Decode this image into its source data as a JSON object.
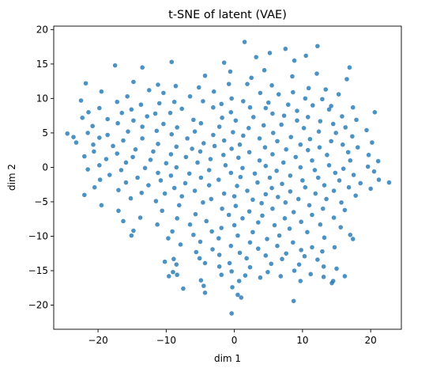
{
  "chart_data": {
    "type": "scatter",
    "title": "t-SNE of latent (VAE)",
    "xlabel": "dim 1",
    "ylabel": "dim 2",
    "xlim": [
      -26.5,
      24.5
    ],
    "ylim": [
      -23.5,
      20.5
    ],
    "xticks": [
      -20,
      -10,
      0,
      10,
      20
    ],
    "yticks": [
      -20,
      -15,
      -10,
      -5,
      0,
      5,
      10,
      15,
      20
    ],
    "grid": false,
    "legend": "none",
    "marker_color": "#1f77b4",
    "marker_opacity": 0.8,
    "points": [
      [
        1.5,
        18.2
      ],
      [
        12.2,
        17.6
      ],
      [
        7.5,
        17.2
      ],
      [
        5.2,
        16.6
      ],
      [
        10.5,
        16.2
      ],
      [
        3.2,
        16.0
      ],
      [
        8.8,
        15.5
      ],
      [
        -9.2,
        15.3
      ],
      [
        -1.5,
        15.2
      ],
      [
        -17.5,
        14.8
      ],
      [
        -13.5,
        14.5
      ],
      [
        16.9,
        14.5
      ],
      [
        4.4,
        14.1
      ],
      [
        -0.6,
        13.9
      ],
      [
        12.1,
        13.6
      ],
      [
        8.5,
        13.2
      ],
      [
        -4.3,
        13.3
      ],
      [
        2.5,
        13.0
      ],
      [
        16.5,
        12.8
      ],
      [
        -21.8,
        12.2
      ],
      [
        -14.8,
        12.4
      ],
      [
        -11.2,
        12.0
      ],
      [
        -0.8,
        12.1
      ],
      [
        1.9,
        12.1
      ],
      [
        5.5,
        11.9
      ],
      [
        -8.6,
        11.8
      ],
      [
        -5.2,
        11.6
      ],
      [
        10.9,
        11.5
      ],
      [
        13.4,
        11.3
      ],
      [
        -19.5,
        11.0
      ],
      [
        -12.5,
        11.2
      ],
      [
        -10.4,
        10.8
      ],
      [
        -3.0,
        11.0
      ],
      [
        3.8,
        10.8
      ],
      [
        6.5,
        10.6
      ],
      [
        8.6,
        10.9
      ],
      [
        15.3,
        10.6
      ],
      [
        -15.7,
        10.3
      ],
      [
        -6.5,
        10.3
      ],
      [
        -0.4,
        10.0
      ],
      [
        10.4,
        10.0
      ],
      [
        12.9,
        9.9
      ],
      [
        -22.5,
        9.7
      ],
      [
        -17.2,
        9.5
      ],
      [
        -11.0,
        9.3
      ],
      [
        -8.8,
        9.5
      ],
      [
        -4.6,
        9.6
      ],
      [
        1.3,
        9.6
      ],
      [
        5.0,
        9.4
      ],
      [
        -13.7,
        9.1
      ],
      [
        -1.9,
        9.2
      ],
      [
        7.9,
        9.1
      ],
      [
        11.5,
        9.0
      ],
      [
        14.2,
        8.9
      ],
      [
        17.4,
        8.7
      ],
      [
        -19.8,
        8.6
      ],
      [
        -15.1,
        8.4
      ],
      [
        -7.7,
        8.5
      ],
      [
        -3.1,
        8.7
      ],
      [
        2.3,
        8.7
      ],
      [
        4.6,
        8.6
      ],
      [
        9.2,
        8.2
      ],
      [
        -21.4,
        8.0
      ],
      [
        -16.5,
        7.9
      ],
      [
        -11.6,
        7.8
      ],
      [
        -9.4,
        7.9
      ],
      [
        -0.5,
        8.0
      ],
      [
        5.6,
        7.8
      ],
      [
        13.9,
        8.4
      ],
      [
        20.6,
        8.0
      ],
      [
        -12.8,
        7.4
      ],
      [
        -1.8,
        7.2
      ],
      [
        2.8,
        7.3
      ],
      [
        7.3,
        7.5
      ],
      [
        10.8,
        7.3
      ],
      [
        15.8,
        7.4
      ],
      [
        -22.3,
        7.2
      ],
      [
        -18.6,
        7.0
      ],
      [
        -14.8,
        6.8
      ],
      [
        -6.0,
        6.9
      ],
      [
        0.2,
        6.8
      ],
      [
        9.2,
        6.8
      ],
      [
        12.6,
        6.7
      ],
      [
        17.9,
        6.9
      ],
      [
        -17.1,
        6.4
      ],
      [
        -10.4,
        6.3
      ],
      [
        -4.9,
        6.4
      ],
      [
        4.3,
        6.1
      ],
      [
        6.9,
        6.2
      ],
      [
        14.5,
        6.3
      ],
      [
        -20.8,
        6.0
      ],
      [
        -13.5,
        5.9
      ],
      [
        -8.4,
        5.8
      ],
      [
        -2.2,
        5.9
      ],
      [
        2.1,
        5.7
      ],
      [
        10.2,
        5.7
      ],
      [
        16.3,
        5.8
      ],
      [
        19.4,
        5.4
      ],
      [
        -21.5,
        5.0
      ],
      [
        -15.6,
        5.2
      ],
      [
        -11.4,
        5.3
      ],
      [
        -5.8,
        5.2
      ],
      [
        -0.2,
        5.1
      ],
      [
        5.7,
        5.0
      ],
      [
        12.4,
        5.2
      ],
      [
        14.9,
        5.0
      ],
      [
        -24.5,
        4.9
      ],
      [
        -18.6,
        4.7
      ],
      [
        -9.2,
        4.8
      ],
      [
        -3.1,
        4.7
      ],
      [
        1.3,
        4.6
      ],
      [
        8.3,
        4.4
      ],
      [
        17.3,
        4.5
      ],
      [
        -23.6,
        4.4
      ],
      [
        -19.8,
        4.3
      ],
      [
        -13.5,
        4.2
      ],
      [
        -6.9,
        4.2
      ],
      [
        3.7,
        4.2
      ],
      [
        11.1,
        4.1
      ],
      [
        -16.3,
        3.9
      ],
      [
        -1.5,
        3.9
      ],
      [
        6.3,
        3.8
      ],
      [
        14.2,
        3.8
      ],
      [
        20.2,
        3.6
      ],
      [
        -23.2,
        3.6
      ],
      [
        -20.7,
        3.3
      ],
      [
        -11.2,
        3.4
      ],
      [
        -4.5,
        3.5
      ],
      [
        0.8,
        3.3
      ],
      [
        9.7,
        3.3
      ],
      [
        15.9,
        3.3
      ],
      [
        -17.8,
        3.1
      ],
      [
        -8.5,
        3.0
      ],
      [
        -2.9,
        3.1
      ],
      [
        4.5,
        2.9
      ],
      [
        12.5,
        2.9
      ],
      [
        18.1,
        2.9
      ],
      [
        -14.5,
        2.6
      ],
      [
        -6.2,
        2.7
      ],
      [
        -0.4,
        2.7
      ],
      [
        7.6,
        2.6
      ],
      [
        10.8,
        2.5
      ],
      [
        -20.6,
        2.3
      ],
      [
        -11.9,
        2.3
      ],
      [
        -5.0,
        2.3
      ],
      [
        2.2,
        2.2
      ],
      [
        16.7,
        2.2
      ],
      [
        -17.2,
        2.0
      ],
      [
        -9.3,
        1.9
      ],
      [
        -1.6,
        1.8
      ],
      [
        5.6,
        1.9
      ],
      [
        13.6,
        1.8
      ],
      [
        19.7,
        1.8
      ],
      [
        -22.0,
        1.6
      ],
      [
        -14.9,
        1.5
      ],
      [
        -7.1,
        1.5
      ],
      [
        0.6,
        1.4
      ],
      [
        9.0,
        1.5
      ],
      [
        -18.8,
        1.2
      ],
      [
        -12.3,
        1.1
      ],
      [
        -3.5,
        1.2
      ],
      [
        3.7,
        1.0
      ],
      [
        11.4,
        1.0
      ],
      [
        17.0,
        1.0
      ],
      [
        -15.9,
        0.7
      ],
      [
        -10.0,
        0.6
      ],
      [
        -5.4,
        0.7
      ],
      [
        7.2,
        0.7
      ],
      [
        21.1,
        0.9
      ],
      [
        -19.8,
        0.3
      ],
      [
        -1.3,
        0.3
      ],
      [
        4.6,
        0.2
      ],
      [
        13.9,
        0.3
      ],
      [
        -13.1,
        -0.1
      ],
      [
        -8.5,
        0.0
      ],
      [
        1.2,
        -0.1
      ],
      [
        9.7,
        0.0
      ],
      [
        16.0,
        -0.2
      ],
      [
        19.6,
        0.1
      ],
      [
        -21.5,
        -0.3
      ],
      [
        -16.6,
        -0.4
      ],
      [
        -3.7,
        -0.4
      ],
      [
        6.2,
        -0.5
      ],
      [
        11.8,
        -0.4
      ],
      [
        -11.2,
        -0.8
      ],
      [
        -6.6,
        -0.9
      ],
      [
        -0.5,
        -0.8
      ],
      [
        3.0,
        -0.9
      ],
      [
        14.8,
        -0.8
      ],
      [
        20.5,
        -0.6
      ],
      [
        -18.3,
        -1.1
      ],
      [
        -9.3,
        -1.2
      ],
      [
        8.2,
        -1.2
      ],
      [
        17.5,
        -1.1
      ],
      [
        -14.2,
        -1.5
      ],
      [
        -4.9,
        -1.5
      ],
      [
        0.9,
        -1.4
      ],
      [
        5.2,
        -1.5
      ],
      [
        12.3,
        -1.5
      ],
      [
        -19.7,
        -1.8
      ],
      [
        -10.8,
        -1.9
      ],
      [
        -2.3,
        -1.8
      ],
      [
        10.0,
        -1.9
      ],
      [
        15.4,
        -1.9
      ],
      [
        21.2,
        -1.8
      ],
      [
        -15.9,
        -2.2
      ],
      [
        -7.2,
        -2.3
      ],
      [
        3.4,
        -2.2
      ],
      [
        7.0,
        -2.4
      ],
      [
        18.5,
        -2.3
      ],
      [
        22.7,
        -2.2
      ],
      [
        -12.6,
        -2.6
      ],
      [
        -3.7,
        -2.6
      ],
      [
        0.4,
        -2.7
      ],
      [
        13.2,
        -2.6
      ],
      [
        -20.5,
        -2.9
      ],
      [
        -8.8,
        -3.0
      ],
      [
        5.5,
        -3.0
      ],
      [
        10.4,
        -2.9
      ],
      [
        16.8,
        -2.9
      ],
      [
        20.0,
        -3.1
      ],
      [
        -17.0,
        -3.3
      ],
      [
        -5.8,
        -3.4
      ],
      [
        1.9,
        -3.4
      ],
      [
        8.2,
        -3.5
      ],
      [
        14.6,
        -3.4
      ],
      [
        -13.6,
        -3.7
      ],
      [
        -10.2,
        -3.8
      ],
      [
        -1.5,
        -3.8
      ],
      [
        4.6,
        -3.9
      ],
      [
        11.9,
        -3.8
      ],
      [
        -22.0,
        -4.0
      ],
      [
        -7.7,
        -4.2
      ],
      [
        0.0,
        -4.2
      ],
      [
        6.4,
        -4.3
      ],
      [
        17.8,
        -4.1
      ],
      [
        -15.2,
        -4.5
      ],
      [
        -3.4,
        -4.6
      ],
      [
        2.7,
        -4.7
      ],
      [
        9.4,
        -4.6
      ],
      [
        13.5,
        -4.6
      ],
      [
        -11.5,
        -4.9
      ],
      [
        -4.6,
        -5.1
      ],
      [
        4.0,
        -5.2
      ],
      [
        7.5,
        -5.1
      ],
      [
        15.7,
        -5.1
      ],
      [
        -19.5,
        -5.5
      ],
      [
        -8.1,
        -5.5
      ],
      [
        0.2,
        -5.6
      ],
      [
        11.0,
        -5.5
      ],
      [
        -1.8,
        -6.0
      ],
      [
        5.6,
        -6.0
      ],
      [
        13.0,
        -6.0
      ],
      [
        -17.0,
        -6.3
      ],
      [
        -10.6,
        -6.3
      ],
      [
        2.2,
        -6.4
      ],
      [
        8.7,
        -6.5
      ],
      [
        16.2,
        -6.2
      ],
      [
        -5.7,
        -6.8
      ],
      [
        -0.8,
        -6.9
      ],
      [
        4.1,
        -7.0
      ],
      [
        11.4,
        -6.9
      ],
      [
        -13.8,
        -7.3
      ],
      [
        -8.4,
        -7.4
      ],
      [
        1.2,
        -7.4
      ],
      [
        7.4,
        -7.4
      ],
      [
        14.6,
        -7.3
      ],
      [
        -16.3,
        -7.8
      ],
      [
        -4.1,
        -7.8
      ],
      [
        3.5,
        -8.0
      ],
      [
        9.8,
        -7.9
      ],
      [
        -11.3,
        -8.3
      ],
      [
        -6.5,
        -8.3
      ],
      [
        0.0,
        -8.4
      ],
      [
        5.9,
        -8.4
      ],
      [
        12.6,
        -8.3
      ],
      [
        -1.9,
        -8.8
      ],
      [
        8.1,
        -8.9
      ],
      [
        15.6,
        -8.7
      ],
      [
        -14.8,
        -9.2
      ],
      [
        -9.1,
        -9.3
      ],
      [
        -3.3,
        -9.3
      ],
      [
        2.7,
        -9.4
      ],
      [
        10.7,
        -9.4
      ],
      [
        -6.0,
        -9.8
      ],
      [
        0.5,
        -9.9
      ],
      [
        6.6,
        -9.9
      ],
      [
        17.0,
        -9.8
      ],
      [
        -15.1,
        -9.9
      ],
      [
        -9.7,
        -10.3
      ],
      [
        -2.3,
        -10.3
      ],
      [
        4.8,
        -10.4
      ],
      [
        13.2,
        -10.2
      ],
      [
        -5.0,
        -10.8
      ],
      [
        2.3,
        -10.9
      ],
      [
        8.6,
        -10.9
      ],
      [
        17.4,
        -10.4
      ],
      [
        -7.9,
        -11.2
      ],
      [
        -0.5,
        -11.4
      ],
      [
        6.3,
        -11.4
      ],
      [
        11.4,
        -11.6
      ],
      [
        -3.2,
        -11.9
      ],
      [
        3.5,
        -11.8
      ],
      [
        9.8,
        -12.0
      ],
      [
        14.7,
        -11.6
      ],
      [
        -5.6,
        -12.3
      ],
      [
        0.8,
        -12.4
      ],
      [
        7.6,
        -12.5
      ],
      [
        12.9,
        -12.2
      ],
      [
        -2.2,
        -12.7
      ],
      [
        4.6,
        -12.8
      ],
      [
        10.3,
        -12.9
      ],
      [
        -8.9,
        -13.3
      ],
      [
        -5.1,
        -13.2
      ],
      [
        1.8,
        -13.2
      ],
      [
        7.0,
        -13.3
      ],
      [
        12.2,
        -13.4
      ],
      [
        -10.2,
        -13.7
      ],
      [
        -4.3,
        -13.9
      ],
      [
        -0.7,
        -13.9
      ],
      [
        5.4,
        -14.0
      ],
      [
        9.5,
        -14.1
      ],
      [
        -8.5,
        -14.1
      ],
      [
        -2.2,
        -14.4
      ],
      [
        2.3,
        -14.5
      ],
      [
        13.1,
        -14.4
      ],
      [
        -9.0,
        -15.2
      ],
      [
        -0.4,
        -15.1
      ],
      [
        4.9,
        -15.2
      ],
      [
        8.8,
        -15.0
      ],
      [
        15.0,
        -14.7
      ],
      [
        -8.4,
        -15.6
      ],
      [
        -1.9,
        -15.6
      ],
      [
        1.6,
        -15.7
      ],
      [
        6.8,
        -15.8
      ],
      [
        11.2,
        -15.5
      ],
      [
        16.2,
        -15.8
      ],
      [
        -9.6,
        -15.8
      ],
      [
        3.8,
        -16.0
      ],
      [
        13.1,
        -15.9
      ],
      [
        -4.9,
        -16.4
      ],
      [
        0.7,
        -16.5
      ],
      [
        9.7,
        -16.5
      ],
      [
        14.3,
        -16.8
      ],
      [
        -4.5,
        -17.2
      ],
      [
        -0.3,
        -17.4
      ],
      [
        14.5,
        -16.5
      ],
      [
        -7.5,
        -17.6
      ],
      [
        -4.3,
        -18.2
      ],
      [
        0.5,
        -18.5
      ],
      [
        1.0,
        -18.9
      ],
      [
        8.7,
        -19.4
      ],
      [
        -0.4,
        -21.2
      ]
    ]
  }
}
